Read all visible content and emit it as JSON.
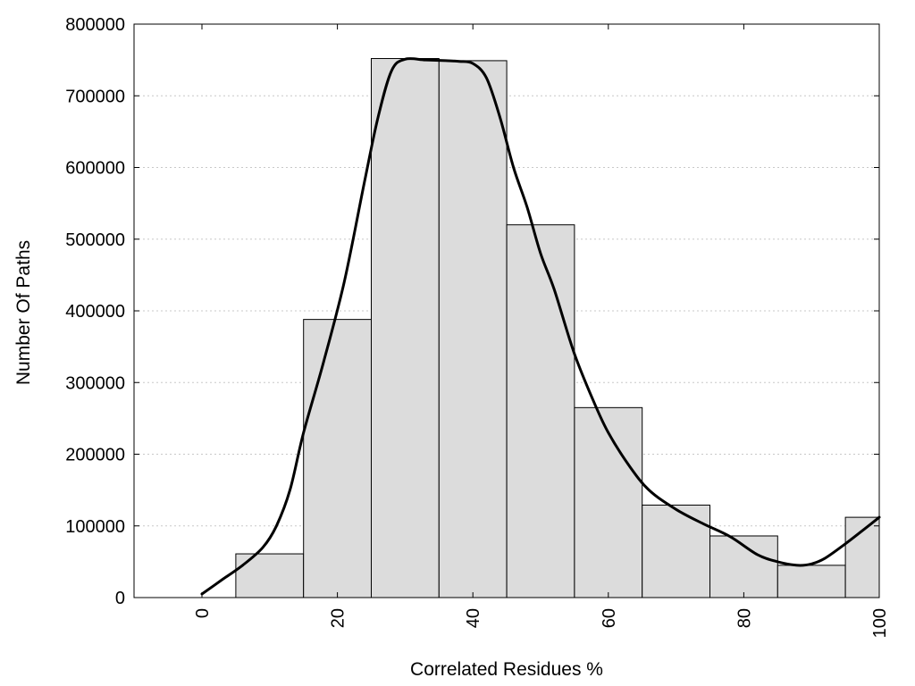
{
  "chart_data": {
    "type": "bar",
    "xlabel": "Correlated Residues %",
    "ylabel": "Number Of Paths",
    "xlim": [
      -10,
      100
    ],
    "ylim": [
      0,
      800000
    ],
    "grid": "horizontal dotted",
    "bin_width": 10,
    "x": [
      0,
      10,
      20,
      30,
      40,
      50,
      60,
      70,
      80,
      90,
      100
    ],
    "values": [
      0,
      61000,
      388000,
      752000,
      749000,
      520000,
      265000,
      129000,
      86000,
      45000,
      112000
    ],
    "x_ticks": [
      "0",
      "20",
      "40",
      "60",
      "80",
      "100"
    ],
    "y_ticks": [
      "0",
      "100000",
      "200000",
      "300000",
      "400000",
      "500000",
      "600000",
      "700000",
      "800000"
    ],
    "curve": {
      "x": [
        0,
        3,
        6,
        9,
        11,
        13,
        15,
        18,
        21,
        24,
        26,
        28,
        30,
        33,
        36,
        38,
        40,
        42,
        44,
        46,
        48,
        50,
        52,
        55,
        58,
        60,
        63,
        66,
        70,
        74,
        78,
        82,
        85,
        88,
        90,
        92,
        95,
        98,
        100
      ],
      "y": [
        5000,
        25000,
        45000,
        70000,
        100000,
        150000,
        230000,
        330000,
        440000,
        580000,
        670000,
        735000,
        751000,
        750000,
        749000,
        748000,
        745000,
        725000,
        670000,
        600000,
        545000,
        480000,
        430000,
        340000,
        270000,
        230000,
        185000,
        150000,
        123000,
        103000,
        85000,
        60000,
        50000,
        45000,
        47000,
        55000,
        75000,
        97000,
        112000
      ]
    },
    "bar_fill": "#dcdcdc",
    "line_color": "#000000"
  }
}
